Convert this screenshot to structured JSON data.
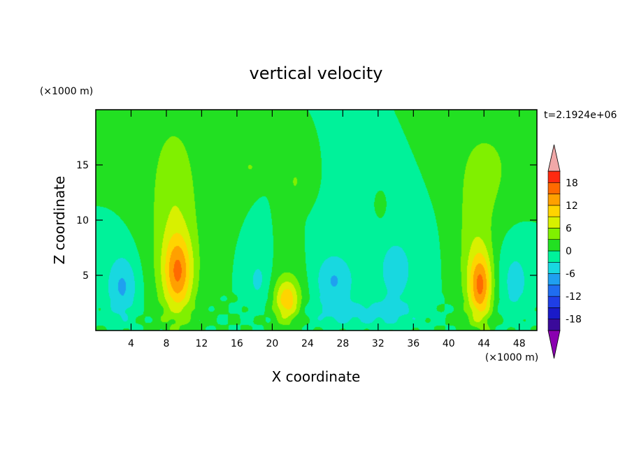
{
  "chart_data": {
    "type": "heatmap",
    "title": "vertical velocity",
    "xlabel": "X coordinate",
    "ylabel": "Z coordinate",
    "x_unit": "(×1000 m)",
    "y_unit": "(×1000 m)",
    "time_label": "t=2.1924e+06",
    "xlim": [
      0,
      50
    ],
    "ylim": [
      0,
      20
    ],
    "x_ticks": [
      4,
      8,
      12,
      16,
      20,
      24,
      28,
      32,
      36,
      40,
      44,
      48
    ],
    "y_ticks": [
      5,
      10,
      15
    ],
    "background_level": 0,
    "levels": [
      -21,
      -18,
      -15,
      -12,
      -9,
      -6,
      -3,
      0,
      3,
      6,
      9,
      12,
      15,
      18,
      21
    ],
    "colorbar_labels": [
      -18,
      -12,
      -6,
      0,
      6,
      12,
      18
    ],
    "colors": [
      "#8a00b0",
      "#3a0a9a",
      "#1a1ac8",
      "#1f3ee6",
      "#1f6df0",
      "#1fa0f0",
      "#18d8e0",
      "#00f29a",
      "#22e022",
      "#80f000",
      "#d8f000",
      "#ffd400",
      "#ffa000",
      "#ff6a00",
      "#ff2a10",
      "#f0a8a8"
    ],
    "features": [
      {
        "name": "updraft-left",
        "x": 9.3,
        "z": 5.2,
        "sx": 1.6,
        "sz": 3.4,
        "amp": 12
      },
      {
        "name": "updraft-left-envelope",
        "x": 9.0,
        "z": 7.5,
        "sx": 3.2,
        "sz": 7.0,
        "amp": 4.2
      },
      {
        "name": "left-plume",
        "x": 8.8,
        "z": 14.5,
        "sx": 2.6,
        "sz": 5.5,
        "amp": 3.4
      },
      {
        "name": "updraft-right",
        "x": 43.6,
        "z": 4.0,
        "sx": 1.3,
        "sz": 3.0,
        "amp": 13
      },
      {
        "name": "updraft-right-envelope",
        "x": 43.0,
        "z": 7.5,
        "sx": 2.2,
        "sz": 6.5,
        "amp": 4.5
      },
      {
        "name": "right-plume",
        "x": 44.5,
        "z": 14.8,
        "sx": 3.6,
        "sz": 4.5,
        "amp": 3.3
      },
      {
        "name": "updraft-middle",
        "x": 21.7,
        "z": 2.7,
        "sx": 1.3,
        "sz": 1.8,
        "amp": 8.5
      },
      {
        "name": "middle-envelope",
        "x": 21.5,
        "z": 3.2,
        "sx": 2.4,
        "sz": 3.0,
        "amp": 3.2
      },
      {
        "name": "cell-22-upper",
        "x": 22.6,
        "z": 13.5,
        "sx": 0.9,
        "sz": 1.5,
        "amp": 3.2
      },
      {
        "name": "cell-17-upper",
        "x": 17.5,
        "z": 14.8,
        "sx": 0.9,
        "sz": 0.8,
        "amp": 3.2
      },
      {
        "name": "cell-32-upper",
        "x": 32.3,
        "z": 11.2,
        "sx": 0.5,
        "sz": 0.9,
        "amp": 3.2
      },
      {
        "name": "downdraft-3",
        "x": 3.0,
        "z": 4.0,
        "sx": 1.8,
        "sz": 3.0,
        "amp": -6.5
      },
      {
        "name": "downdraft-26",
        "x": 27.0,
        "z": 4.5,
        "sx": 2.2,
        "sz": 2.6,
        "amp": -6.2
      },
      {
        "name": "downdraft-19",
        "x": 18.5,
        "z": 4.5,
        "sx": 1.5,
        "sz": 2.5,
        "amp": -4.0
      },
      {
        "name": "downdraft-34",
        "x": 34.0,
        "z": 5.5,
        "sx": 3.0,
        "sz": 4.5,
        "amp": -3.8
      },
      {
        "name": "downdraft-48",
        "x": 47.5,
        "z": 4.5,
        "sx": 2.0,
        "sz": 3.5,
        "amp": -4.0
      },
      {
        "name": "near-ground-cool",
        "x": 30.0,
        "z": 1.5,
        "sx": 6.0,
        "sz": 1.2,
        "amp": -3.5
      }
    ]
  }
}
